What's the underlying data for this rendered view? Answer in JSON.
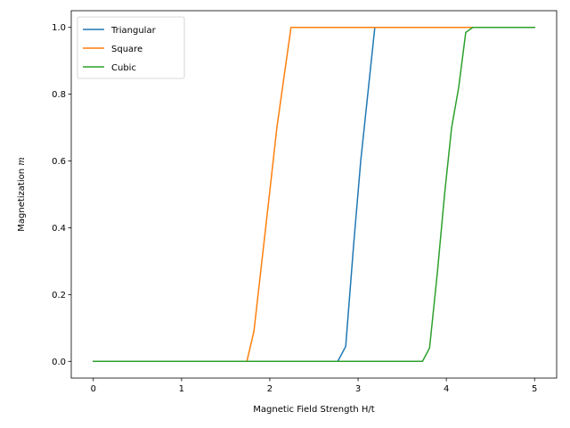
{
  "chart_data": {
    "type": "line",
    "title": "",
    "xlabel": "Magnetic Field Strength H/t",
    "ylabel": "Magnetization m",
    "xlim": [
      -0.25,
      5.25
    ],
    "ylim": [
      -0.05,
      1.05
    ],
    "xticks": [
      0,
      1,
      2,
      3,
      4,
      5
    ],
    "xtick_labels": [
      "0",
      "1",
      "2",
      "3",
      "4",
      "5"
    ],
    "yticks": [
      0.0,
      0.2,
      0.4,
      0.6,
      0.8,
      1.0
    ],
    "ytick_labels": [
      "0.0",
      "0.2",
      "0.4",
      "0.6",
      "0.8",
      "1.0"
    ],
    "grid": false,
    "legend_position": "top-left",
    "series": [
      {
        "name": "Triangular",
        "color": "#1f77b4",
        "x": [
          0,
          2.77,
          2.86,
          2.95,
          3.03,
          3.11,
          3.19,
          3.27,
          5
        ],
        "y": [
          0,
          0,
          0.045,
          0.35,
          0.6,
          0.8,
          1.0,
          1.0,
          1.0
        ]
      },
      {
        "name": "Square",
        "color": "#ff7f0e",
        "x": [
          0,
          1.74,
          1.82,
          1.91,
          2.0,
          2.08,
          2.16,
          2.24,
          2.32,
          5
        ],
        "y": [
          0,
          0,
          0.09,
          0.3,
          0.51,
          0.7,
          0.85,
          1.0,
          1.0,
          1.0
        ]
      },
      {
        "name": "Cubic",
        "color": "#2ca02c",
        "x": [
          0,
          3.73,
          3.81,
          3.9,
          3.98,
          4.06,
          4.14,
          4.22,
          4.3,
          5
        ],
        "y": [
          0,
          0,
          0.04,
          0.27,
          0.5,
          0.7,
          0.82,
          0.985,
          1.0,
          1.0
        ]
      }
    ]
  }
}
